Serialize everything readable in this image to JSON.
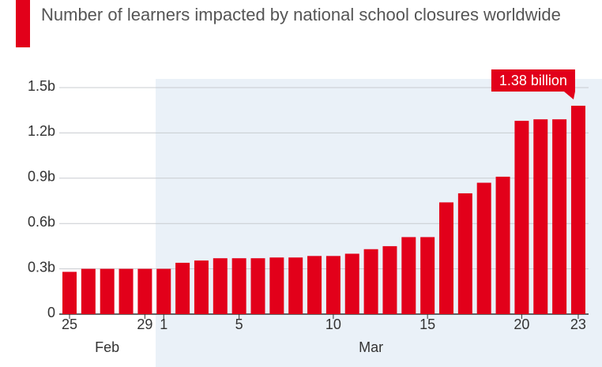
{
  "chart_data": {
    "type": "bar",
    "title": "Number of learners impacted by national school closures worldwide",
    "categories": [
      "25",
      null,
      null,
      null,
      "29",
      "1",
      null,
      null,
      null,
      "5",
      null,
      null,
      null,
      null,
      "10",
      null,
      null,
      null,
      null,
      "15",
      null,
      null,
      null,
      null,
      "20",
      null,
      null,
      "23"
    ],
    "x_groups": [
      {
        "label": "Feb",
        "size": 5
      },
      {
        "label": "Mar",
        "size": 23
      }
    ],
    "values": [
      0.28,
      0.3,
      0.3,
      0.3,
      0.3,
      0.3,
      0.34,
      0.355,
      0.37,
      0.37,
      0.37,
      0.375,
      0.375,
      0.385,
      0.385,
      0.4,
      0.43,
      0.45,
      0.51,
      0.51,
      0.74,
      0.8,
      0.87,
      0.91,
      1.28,
      1.29,
      1.29,
      1.38
    ],
    "value_labels": [
      null,
      null,
      null,
      null,
      null,
      null,
      null,
      null,
      null,
      null,
      null,
      null,
      null,
      null,
      null,
      null,
      null,
      null,
      null,
      null,
      null,
      null,
      null,
      null,
      null,
      null,
      null,
      "1.38 billion"
    ],
    "color": "#e2001a",
    "ylim": [
      0,
      1.5
    ],
    "yticks": [
      0,
      {
        "value": 0.3,
        "label": "0.3b"
      },
      {
        "value": 0.6,
        "label": "0.6b"
      },
      {
        "value": 0.9,
        "label": "0.9b"
      },
      {
        "value": 1.2,
        "label": "1.2b"
      },
      {
        "value": 1.5,
        "label": "1.5b"
      }
    ],
    "grid": true
  }
}
